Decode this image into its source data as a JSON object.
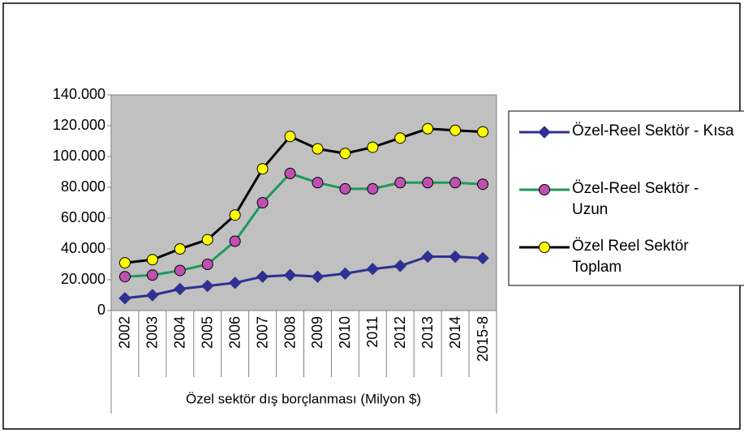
{
  "chart_data": {
    "type": "line",
    "x_label": "Özel sektör dış borçlanması (Milyon $)",
    "categories": [
      "2002",
      "2003",
      "2004",
      "2005",
      "2006",
      "2007",
      "2008",
      "2009",
      "2010",
      "2011",
      "2012",
      "2013",
      "2014",
      "2015-8"
    ],
    "series": [
      {
        "name": "Özel-Reel Sektör - Kısa",
        "color": "#2e3192",
        "marker": "diamond",
        "marker_color": "#2e3192",
        "values": [
          8000,
          10000,
          14000,
          16000,
          18000,
          22000,
          23000,
          22000,
          24000,
          27000,
          29000,
          35000,
          35000,
          34000
        ]
      },
      {
        "name": "Özel-Reel Sektör - Uzun",
        "color": "#1a9a5a",
        "marker": "circle",
        "marker_color": "#c050b0",
        "values": [
          22000,
          23000,
          26000,
          30000,
          45000,
          70000,
          89000,
          83000,
          79000,
          79000,
          83000,
          83000,
          83000,
          82000
        ]
      },
      {
        "name": "Özel Reel Sektör Toplam",
        "color": "#000000",
        "marker": "circle",
        "marker_color": "#ffff00",
        "values": [
          31000,
          33000,
          40000,
          46000,
          62000,
          92000,
          113000,
          105000,
          102000,
          106000,
          112000,
          118000,
          117000,
          116000
        ]
      }
    ],
    "ylim": [
      0,
      140000
    ],
    "yticks": [
      0,
      {
        "value": 20000,
        "label": "20.000"
      },
      {
        "value": 40000,
        "label": "40.000"
      },
      {
        "value": 60000,
        "label": "60.000"
      },
      {
        "value": 80000,
        "label": "80.000"
      },
      {
        "value": 100000,
        "label": "100.000"
      },
      {
        "value": 120000,
        "label": "120.000"
      },
      {
        "value": 140000,
        "label": "140.000"
      }
    ],
    "plot_background": "#c0c0c0",
    "grid": false,
    "legend": "right"
  }
}
